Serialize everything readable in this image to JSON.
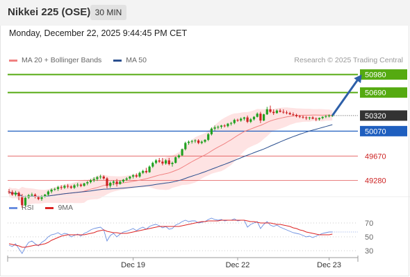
{
  "header": {
    "title": "Nikkei 225 (OSE)",
    "interval": "30 MIN"
  },
  "datetime": "Monday, December 22, 2025 9:44:45 PM CET",
  "credit": "Research © 2025 Trading Central",
  "colors": {
    "up_candle": "#21a121",
    "down_candle": "#cc2222",
    "bollinger_fill": "#fdd9d9",
    "ma20": "#f08080",
    "ma50": "#2a4f8f",
    "resistance": "#55aa11",
    "support": "#1f5fbf",
    "minor_level": "#e25555",
    "price_tag": "#333333",
    "arrow": "#2d5fa8",
    "rsi": "#6a8ee0",
    "rsi_ma": "#dd2222"
  },
  "chart_data": [
    {
      "type": "candlestick",
      "legend": [
        {
          "label": "MA 20 + Bollinger Bands",
          "color": "#f08080"
        },
        {
          "label": "MA 50",
          "color": "#2a4f8f"
        }
      ],
      "y_range": [
        48950,
        51120
      ],
      "levels": [
        {
          "value": 50980,
          "label": "50980",
          "kind": "resistance",
          "style": "box"
        },
        {
          "value": 50690,
          "label": "50690",
          "kind": "resistance",
          "style": "box"
        },
        {
          "value": 50320,
          "label": "50320",
          "kind": "last_price",
          "style": "box"
        },
        {
          "value": 50070,
          "label": "50070",
          "kind": "support",
          "style": "box"
        },
        {
          "value": 49670,
          "label": "49670",
          "kind": "minor",
          "style": "text"
        },
        {
          "value": 49280,
          "label": "49280",
          "kind": "minor",
          "style": "text"
        }
      ],
      "x_ticks": [
        {
          "label": "Dec 19",
          "index": 38
        },
        {
          "label": "Dec 22",
          "index": 70
        },
        {
          "label": "Dec 23",
          "index": 98
        }
      ],
      "bars": 100,
      "ohlc": [
        [
          49100,
          49140,
          49060,
          49090
        ],
        [
          49090,
          49120,
          49030,
          49050
        ],
        [
          49050,
          49110,
          49020,
          49080
        ],
        [
          49080,
          49100,
          48960,
          49010
        ],
        [
          49010,
          49060,
          48840,
          48880
        ],
        [
          48880,
          49030,
          48860,
          49000
        ],
        [
          49000,
          49060,
          48980,
          49040
        ],
        [
          49040,
          49080,
          49010,
          49050
        ],
        [
          49050,
          49070,
          48990,
          49010
        ],
        [
          49010,
          49030,
          48960,
          48980
        ],
        [
          48980,
          49040,
          48950,
          49020
        ],
        [
          49020,
          49060,
          49000,
          49050
        ],
        [
          49050,
          49120,
          49030,
          49100
        ],
        [
          49100,
          49150,
          49070,
          49130
        ],
        [
          49130,
          49160,
          49110,
          49140
        ],
        [
          49140,
          49190,
          49110,
          49170
        ],
        [
          49170,
          49200,
          49130,
          49160
        ],
        [
          49160,
          49210,
          49140,
          49190
        ],
        [
          49190,
          49220,
          49150,
          49180
        ],
        [
          49180,
          49200,
          49140,
          49160
        ],
        [
          49160,
          49220,
          49140,
          49200
        ],
        [
          49200,
          49240,
          49170,
          49210
        ],
        [
          49210,
          49230,
          49170,
          49190
        ],
        [
          49190,
          49240,
          49180,
          49230
        ],
        [
          49230,
          49270,
          49200,
          49250
        ],
        [
          49250,
          49300,
          49230,
          49280
        ],
        [
          49280,
          49330,
          49250,
          49300
        ],
        [
          49300,
          49350,
          49270,
          49330
        ],
        [
          49330,
          49370,
          49300,
          49340
        ],
        [
          49340,
          49360,
          49290,
          49310
        ],
        [
          49310,
          49330,
          49150,
          49190
        ],
        [
          49190,
          49260,
          49160,
          49240
        ],
        [
          49240,
          49280,
          49200,
          49260
        ],
        [
          49260,
          49300,
          49180,
          49220
        ],
        [
          49220,
          49280,
          49210,
          49260
        ],
        [
          49260,
          49300,
          49240,
          49290
        ],
        [
          49290,
          49330,
          49270,
          49310
        ],
        [
          49310,
          49350,
          49290,
          49340
        ],
        [
          49340,
          49380,
          49310,
          49360
        ],
        [
          49360,
          49390,
          49320,
          49340
        ],
        [
          49340,
          49420,
          49320,
          49400
        ],
        [
          49400,
          49450,
          49380,
          49430
        ],
        [
          49430,
          49480,
          49390,
          49410
        ],
        [
          49410,
          49520,
          49400,
          49500
        ],
        [
          49500,
          49580,
          49480,
          49560
        ],
        [
          49560,
          49620,
          49540,
          49600
        ],
        [
          49600,
          49640,
          49560,
          49580
        ],
        [
          49580,
          49640,
          49520,
          49550
        ],
        [
          49550,
          49620,
          49530,
          49600
        ],
        [
          49600,
          49640,
          49520,
          49540
        ],
        [
          49540,
          49580,
          49500,
          49560
        ],
        [
          49560,
          49660,
          49550,
          49650
        ],
        [
          49650,
          49700,
          49630,
          49680
        ],
        [
          49680,
          49790,
          49670,
          49780
        ],
        [
          49780,
          49900,
          49760,
          49880
        ],
        [
          49880,
          49920,
          49850,
          49900
        ],
        [
          49900,
          49930,
          49870,
          49910
        ],
        [
          49910,
          49940,
          49880,
          49920
        ],
        [
          49920,
          49940,
          49860,
          49880
        ],
        [
          49880,
          49920,
          49860,
          49900
        ],
        [
          49900,
          49940,
          49880,
          49930
        ],
        [
          49930,
          50040,
          49910,
          50020
        ],
        [
          50020,
          50130,
          50000,
          50110
        ],
        [
          50110,
          50160,
          50080,
          50130
        ],
        [
          50130,
          50160,
          50100,
          50140
        ],
        [
          50140,
          50170,
          50110,
          50160
        ],
        [
          50160,
          50180,
          50130,
          50150
        ],
        [
          50150,
          50200,
          50130,
          50190
        ],
        [
          50190,
          50220,
          50160,
          50200
        ],
        [
          50200,
          50270,
          50180,
          50250
        ],
        [
          50250,
          50270,
          50220,
          50240
        ],
        [
          50240,
          50290,
          50220,
          50270
        ],
        [
          50270,
          50300,
          50240,
          50290
        ],
        [
          50290,
          50320,
          50200,
          50220
        ],
        [
          50220,
          50280,
          50200,
          50260
        ],
        [
          50260,
          50310,
          50240,
          50300
        ],
        [
          50300,
          50370,
          50290,
          50350
        ],
        [
          50350,
          50380,
          50200,
          50240
        ],
        [
          50240,
          50350,
          50230,
          50340
        ],
        [
          50340,
          50460,
          50330,
          50420
        ],
        [
          50420,
          50480,
          50360,
          50380
        ],
        [
          50380,
          50420,
          50330,
          50360
        ],
        [
          50360,
          50420,
          50350,
          50400
        ],
        [
          50400,
          50430,
          50370,
          50380
        ],
        [
          50380,
          50420,
          50350,
          50370
        ],
        [
          50370,
          50400,
          50340,
          50360
        ],
        [
          50360,
          50380,
          50330,
          50340
        ],
        [
          50340,
          50370,
          50310,
          50330
        ],
        [
          50330,
          50350,
          50290,
          50310
        ],
        [
          50310,
          50330,
          50280,
          50300
        ],
        [
          50300,
          50320,
          50270,
          50290
        ],
        [
          50290,
          50310,
          50250,
          50280
        ],
        [
          50280,
          50300,
          50250,
          50290
        ],
        [
          50290,
          50310,
          50260,
          50270
        ],
        [
          50270,
          50290,
          50230,
          50260
        ],
        [
          50260,
          50290,
          50240,
          50280
        ],
        [
          50280,
          50310,
          50260,
          50300
        ],
        [
          50300,
          50330,
          50280,
          50310
        ],
        [
          50310,
          50340,
          50290,
          50320
        ],
        [
          50320,
          50340,
          50300,
          50320
        ]
      ],
      "projection": {
        "from_index": 99,
        "from_value": 50320,
        "to_index": 108,
        "to_value": 50980
      }
    },
    {
      "type": "line",
      "legend": [
        {
          "label": "RSI",
          "color": "#6a8ee0"
        },
        {
          "label": "9MA",
          "color": "#dd2222"
        }
      ],
      "y_range": [
        20,
        80
      ],
      "y_ticks": [
        30,
        50,
        70
      ],
      "series": [
        {
          "name": "RSI",
          "values": [
            38,
            36,
            40,
            33,
            26,
            35,
            42,
            44,
            40,
            37,
            42,
            45,
            50,
            53,
            54,
            56,
            53,
            55,
            54,
            50,
            52,
            54,
            51,
            55,
            57,
            60,
            62,
            63,
            64,
            60,
            44,
            52,
            55,
            50,
            54,
            57,
            58,
            60,
            62,
            59,
            62,
            64,
            61,
            65,
            67,
            68,
            66,
            63,
            65,
            61,
            62,
            67,
            69,
            72,
            74,
            72,
            73,
            73,
            70,
            71,
            72,
            75,
            77,
            75,
            74,
            75,
            73,
            74,
            74,
            76,
            73,
            74,
            74,
            64,
            68,
            70,
            72,
            62,
            68,
            72,
            67,
            65,
            67,
            64,
            62,
            60,
            58,
            56,
            55,
            54,
            52,
            50,
            51,
            49,
            51,
            53,
            55,
            56,
            57,
            57
          ]
        },
        {
          "name": "9MA",
          "values": [
            40,
            39,
            38,
            37,
            35,
            35,
            36,
            37,
            38,
            38,
            39,
            40,
            42,
            45,
            47,
            49,
            51,
            52,
            53,
            53,
            53,
            53,
            53,
            53,
            54,
            55,
            56,
            58,
            59,
            60,
            58,
            57,
            56,
            56,
            55,
            55,
            55,
            56,
            57,
            58,
            59,
            60,
            61,
            62,
            63,
            64,
            65,
            65,
            65,
            65,
            65,
            65,
            65,
            66,
            67,
            68,
            69,
            70,
            71,
            72,
            72,
            73,
            73,
            73,
            73,
            74,
            74,
            74,
            74,
            74,
            74,
            74,
            74,
            73,
            72,
            72,
            71,
            70,
            70,
            70,
            70,
            69,
            68,
            68,
            67,
            66,
            65,
            63,
            62,
            60,
            59,
            57,
            56,
            55,
            54,
            53,
            53,
            53,
            53,
            54
          ]
        }
      ]
    }
  ]
}
